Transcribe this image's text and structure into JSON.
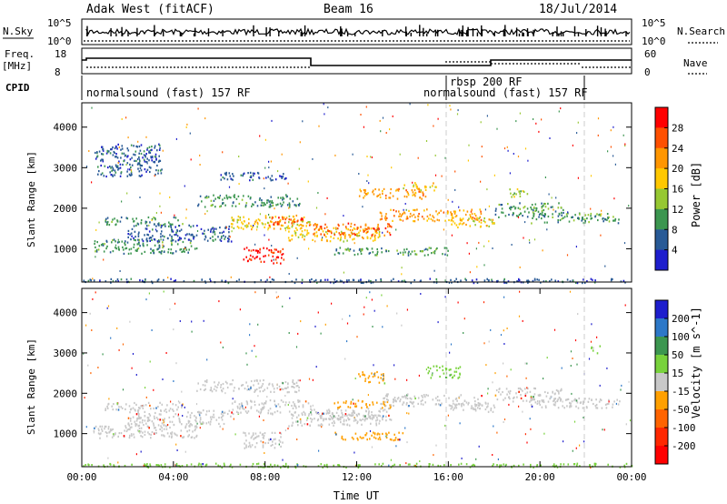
{
  "header": {
    "station": "Adak West (fitACF)",
    "beam": "Beam 16",
    "date": "18/Jul/2014"
  },
  "top_panels": {
    "nsky_label": "N.Sky",
    "nsky_ticks": [
      "10^5",
      "10^0"
    ],
    "nsearch_label": "N.Search",
    "nsearch_ticks": [
      "10^5",
      "10^0"
    ],
    "freq_label": "Freq.",
    "freq_unit": "[MHz]",
    "freq_ticks": [
      "18",
      "8"
    ],
    "nave_label": "Nave",
    "nave_ticks": [
      "60",
      "0"
    ],
    "cpid_label": "CPID",
    "cpid_segments": [
      {
        "label": "normalsound (fast) 157 RF",
        "start": 0,
        "end": 16
      },
      {
        "label": "rbsp 200 RF",
        "start": 16,
        "end": 22
      },
      {
        "label": "normalsound (fast) 157 RF",
        "start": 16,
        "end": 22
      }
    ]
  },
  "chart_data": [
    {
      "type": "heatmap",
      "name": "power",
      "ylabel": "Slant Range [km]",
      "xlabel": "",
      "xlim": [
        0,
        24
      ],
      "ylim": [
        180,
        4600
      ],
      "y_ticks": [
        "1000",
        "2000",
        "3000",
        "4000"
      ],
      "colorbar_label": "Power [dB]",
      "colorbar_ticks": [
        "28",
        "24",
        "20",
        "16",
        "12",
        "8",
        "4"
      ],
      "colorbar_colors": [
        "#ff0000",
        "#ff5000",
        "#ff9600",
        "#ffc800",
        "#96c832",
        "#3c9650",
        "#285a96",
        "#1e1ecd"
      ],
      "bands": [
        {
          "t0": 0.5,
          "t1": 5.0,
          "r0": 900,
          "r1": 1250,
          "level": 2
        },
        {
          "t0": 1.0,
          "t1": 4.5,
          "r0": 1600,
          "r1": 1800,
          "level": 2
        },
        {
          "t0": 2.0,
          "t1": 6.5,
          "r0": 1200,
          "r1": 1600,
          "level": 1
        },
        {
          "t0": 5.0,
          "t1": 9.5,
          "r0": 2050,
          "r1": 2350,
          "level": 2
        },
        {
          "t0": 6.5,
          "t1": 10.0,
          "r0": 1500,
          "r1": 1850,
          "level": 4
        },
        {
          "t0": 7.0,
          "t1": 8.8,
          "r0": 650,
          "r1": 1050,
          "level": 7
        },
        {
          "t0": 8.0,
          "t1": 10.0,
          "r0": 1600,
          "r1": 1800,
          "level": 6
        },
        {
          "t0": 9.0,
          "t1": 13.0,
          "r0": 1200,
          "r1": 1550,
          "level": 4
        },
        {
          "t0": 10.0,
          "t1": 13.5,
          "r0": 1350,
          "r1": 1650,
          "level": 6
        },
        {
          "t0": 12.0,
          "t1": 15.0,
          "r0": 2250,
          "r1": 2500,
          "level": 5
        },
        {
          "t0": 13.0,
          "t1": 17.5,
          "r0": 1700,
          "r1": 2000,
          "level": 5
        },
        {
          "t0": 14.0,
          "t1": 15.5,
          "r0": 2450,
          "r1": 2650,
          "level": 4
        },
        {
          "t0": 16.0,
          "t1": 18.0,
          "r0": 1550,
          "r1": 1800,
          "level": 4
        },
        {
          "t0": 11.0,
          "t1": 16.0,
          "r0": 850,
          "r1": 1050,
          "level": 2
        },
        {
          "t0": 18.0,
          "t1": 21.0,
          "r0": 1800,
          "r1": 2150,
          "level": 2
        },
        {
          "t0": 19.5,
          "t1": 23.5,
          "r0": 1650,
          "r1": 1900,
          "level": 2
        },
        {
          "t0": 18.5,
          "t1": 19.5,
          "r0": 2300,
          "r1": 2500,
          "level": 3
        },
        {
          "t0": 0.0,
          "t1": 24.0,
          "r0": 180,
          "r1": 280,
          "level": 1
        },
        {
          "t0": 0.5,
          "t1": 3.5,
          "r0": 2800,
          "r1": 3600,
          "level": 1
        },
        {
          "t0": 6.0,
          "t1": 9.0,
          "r0": 2700,
          "r1": 2900,
          "level": 1
        }
      ]
    },
    {
      "type": "heatmap",
      "name": "velocity",
      "ylabel": "Slant Range [km]",
      "xlabel": "Time UT",
      "xlim": [
        0,
        24
      ],
      "ylim": [
        180,
        4600
      ],
      "x_ticks": [
        "00:00",
        "04:00",
        "08:00",
        "12:00",
        "16:00",
        "20:00",
        "00:00"
      ],
      "y_ticks": [
        "1000",
        "2000",
        "3000",
        "4000"
      ],
      "colorbar_label": "Velocity [m s^-1]",
      "colorbar_ticks": [
        "200",
        "100",
        "50",
        "15",
        "-15",
        "-50",
        "-100",
        "-200"
      ],
      "colorbar_colors": [
        "#1e1ecd",
        "#2d78c8",
        "#3c9650",
        "#78d23c",
        "#c8c8c8",
        "#ffa000",
        "#ff6400",
        "#ff2800",
        "#ff0000"
      ],
      "bands": [
        {
          "t0": 0.5,
          "t1": 5.0,
          "r0": 900,
          "r1": 1250,
          "level": 4
        },
        {
          "t0": 1.0,
          "t1": 4.5,
          "r0": 1600,
          "r1": 1800,
          "level": 4
        },
        {
          "t0": 2.0,
          "t1": 6.5,
          "r0": 1200,
          "r1": 1600,
          "level": 4
        },
        {
          "t0": 5.0,
          "t1": 9.5,
          "r0": 2050,
          "r1": 2350,
          "level": 4
        },
        {
          "t0": 6.5,
          "t1": 10.0,
          "r0": 1500,
          "r1": 1850,
          "level": 4
        },
        {
          "t0": 7.0,
          "t1": 8.8,
          "r0": 650,
          "r1": 1050,
          "level": 4
        },
        {
          "t0": 9.0,
          "t1": 13.0,
          "r0": 1200,
          "r1": 1550,
          "level": 4
        },
        {
          "t0": 10.0,
          "t1": 13.5,
          "r0": 1350,
          "r1": 1650,
          "level": 4
        },
        {
          "t0": 11.0,
          "t1": 13.5,
          "r0": 1650,
          "r1": 1850,
          "level": 5
        },
        {
          "t0": 12.0,
          "t1": 13.2,
          "r0": 2250,
          "r1": 2550,
          "level": 5
        },
        {
          "t0": 13.0,
          "t1": 17.5,
          "r0": 1700,
          "r1": 2000,
          "level": 4
        },
        {
          "t0": 16.0,
          "t1": 18.0,
          "r0": 1550,
          "r1": 1800,
          "level": 4
        },
        {
          "t0": 11.0,
          "t1": 14.0,
          "r0": 850,
          "r1": 1050,
          "level": 5
        },
        {
          "t0": 15.0,
          "t1": 16.5,
          "r0": 2400,
          "r1": 2700,
          "level": 3
        },
        {
          "t0": 18.0,
          "t1": 21.0,
          "r0": 1800,
          "r1": 2150,
          "level": 4
        },
        {
          "t0": 19.5,
          "t1": 23.5,
          "r0": 1650,
          "r1": 1900,
          "level": 4
        },
        {
          "t0": 0.0,
          "t1": 24.0,
          "r0": 180,
          "r1": 280,
          "level": 3
        },
        {
          "t0": 22.2,
          "t1": 22.6,
          "r0": 3000,
          "r1": 3200,
          "level": 3
        }
      ]
    }
  ]
}
